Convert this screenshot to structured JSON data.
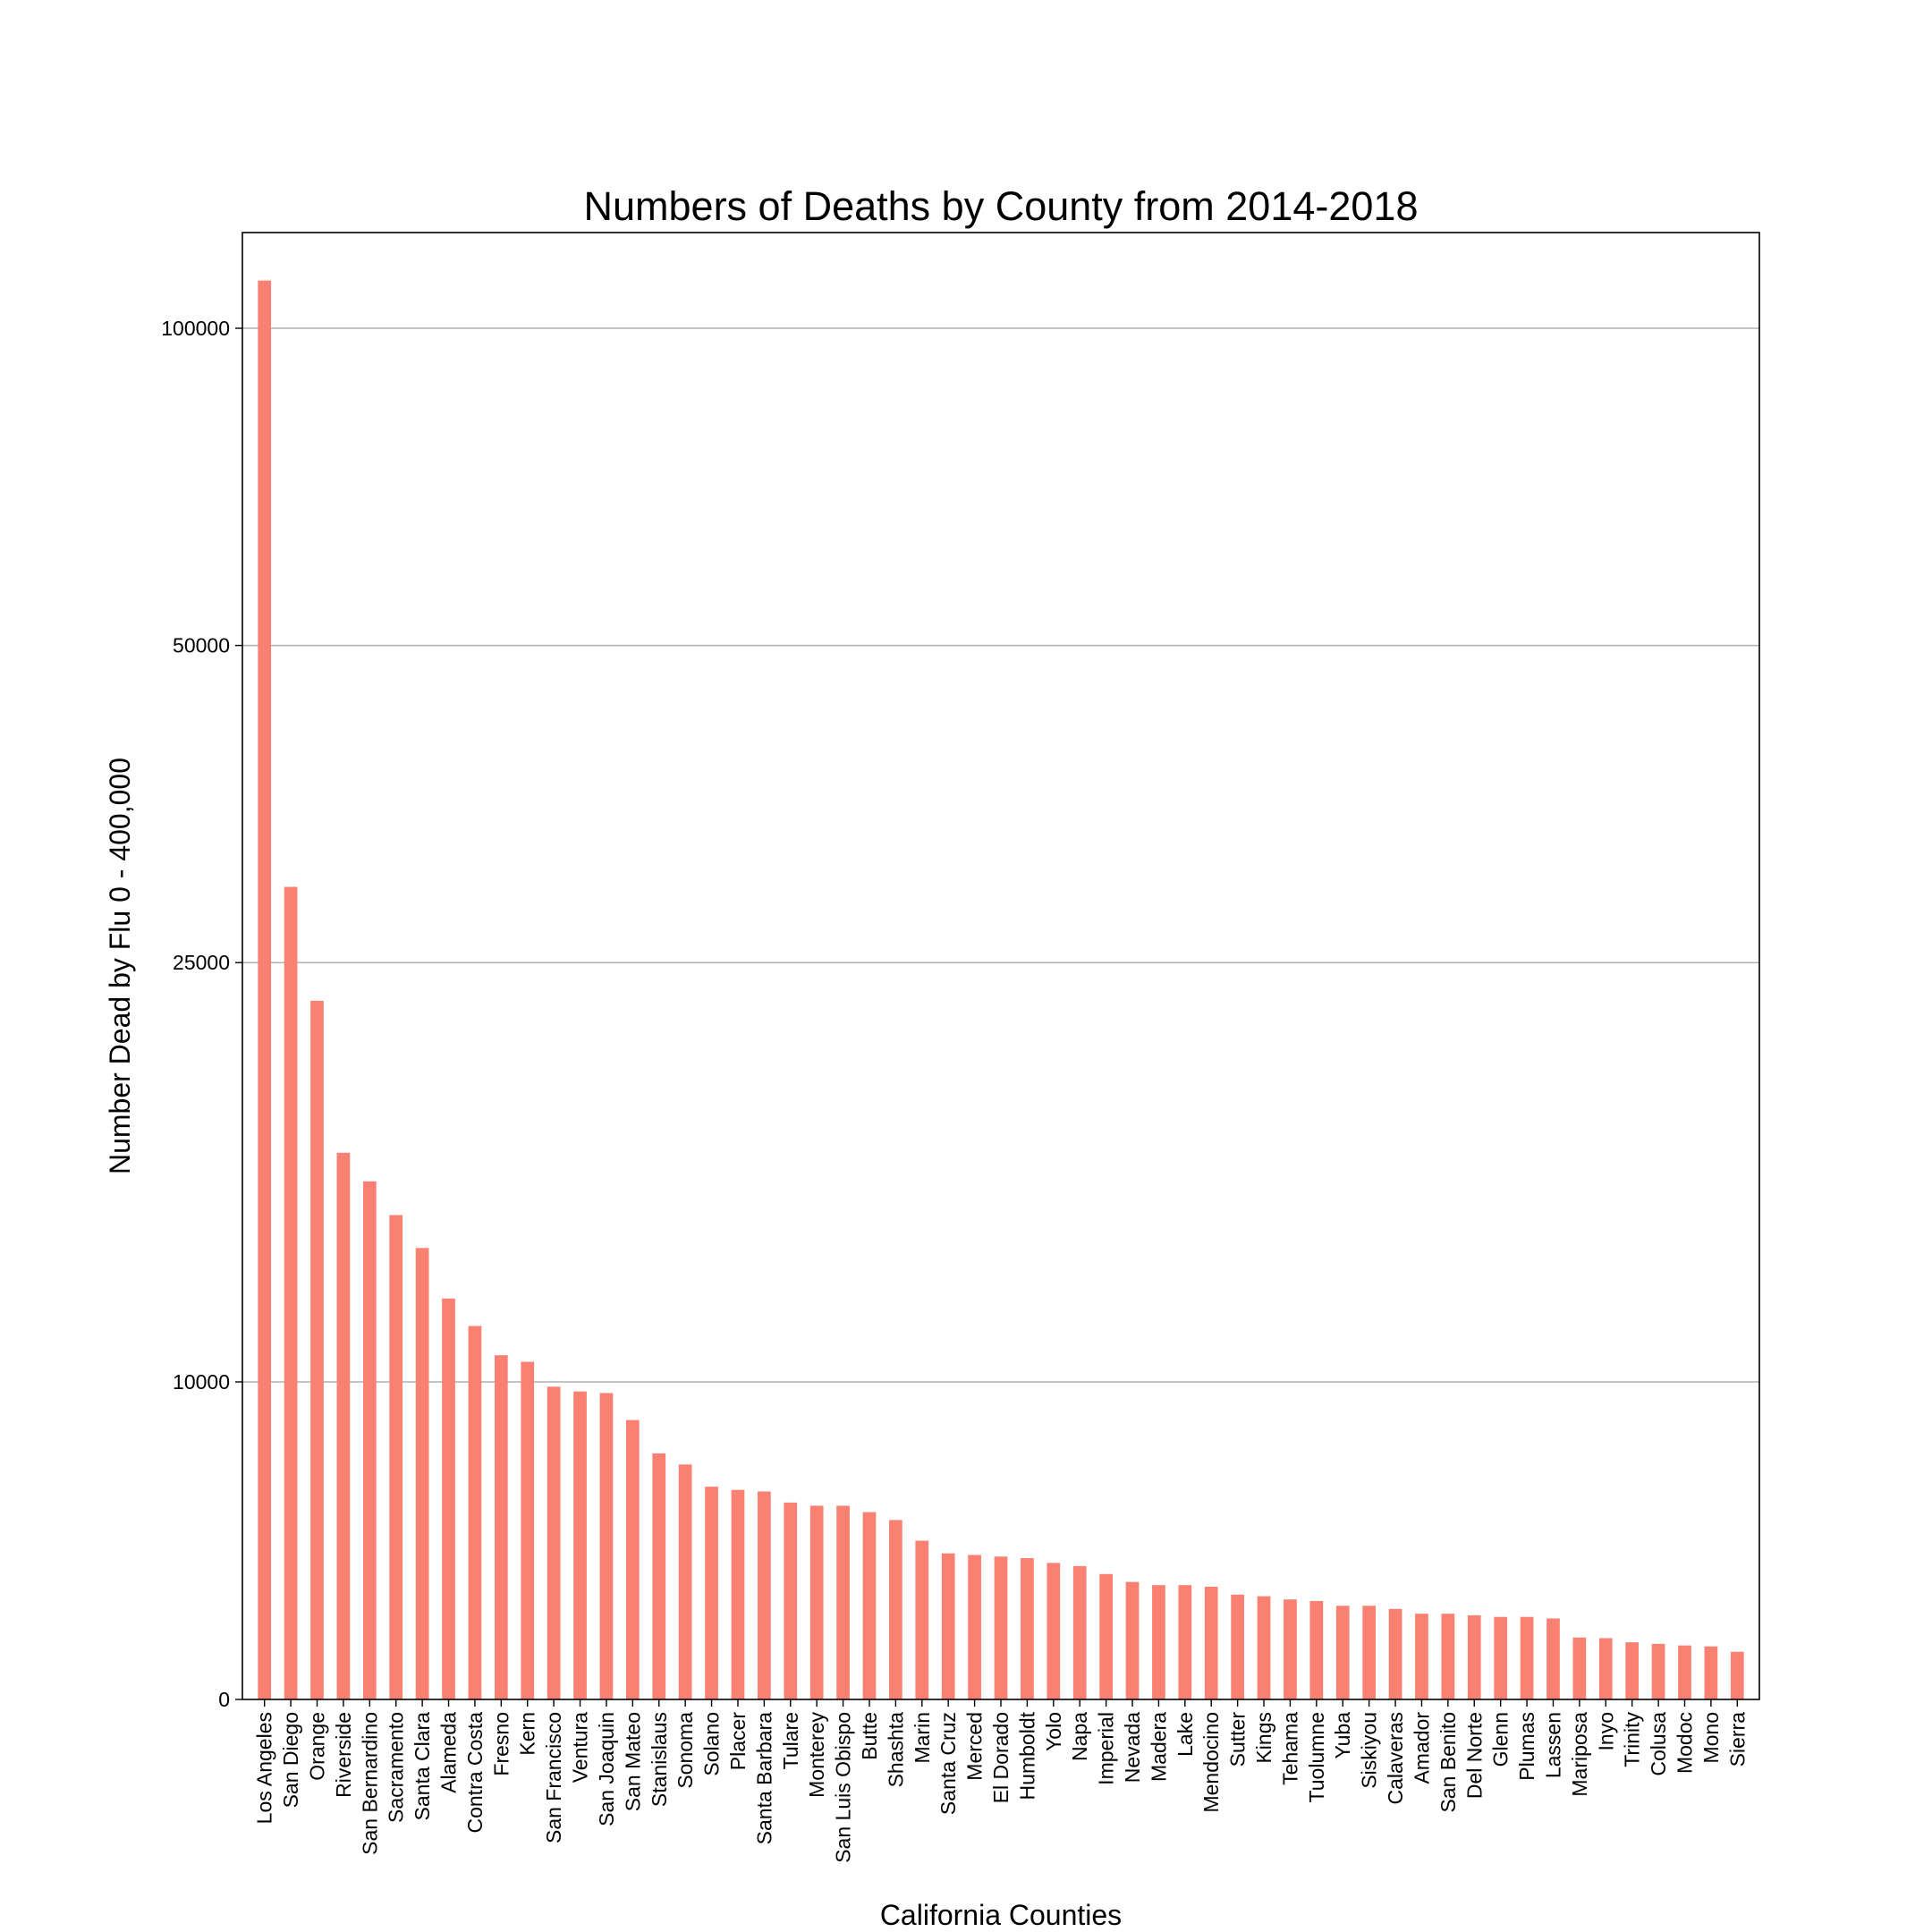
{
  "chart_data": {
    "type": "bar",
    "title": "Numbers of Deaths by County from 2014-2018",
    "xlabel": "California Counties",
    "ylabel": "Number Dead by Flu 0 - 400,000",
    "y_scale": "symlog",
    "y_ticks": [
      0,
      10000,
      25000,
      50000,
      100000
    ],
    "ylim": [
      0,
      122000
    ],
    "grid": "horizontal",
    "bar_color": "#fa8072",
    "categories": [
      "Los Angeles",
      "San Diego",
      "Orange",
      "Riverside",
      "San Bernardino",
      "Sacramento",
      "Santa Clara",
      "Alameda",
      "Contra Costa",
      "Fresno",
      "Kern",
      "San Francisco",
      "Ventura",
      "San Joaquin",
      "San Mateo",
      "Stanislaus",
      "Sonoma",
      "Solano",
      "Placer",
      "Santa Barbara",
      "Tulare",
      "Monterey",
      "San Luis Obispo",
      "Butte",
      "Shashta",
      "Marin",
      "Santa Cruz",
      "Merced",
      "El Dorado",
      "Humboldt",
      "Yolo",
      "Napa",
      "Imperial",
      "Nevada",
      "Madera",
      "Lake",
      "Mendocino",
      "Sutter",
      "Kings",
      "Tehama",
      "Tuolumne",
      "Yuba",
      "Siskiyou",
      "Calaveras",
      "Amador",
      "San Benito",
      "Del Norte",
      "Glenn",
      "Plumas",
      "Lassen",
      "Mariposa",
      "Inyo",
      "Trinity",
      "Colusa",
      "Modoc",
      "Mono",
      "Sierra"
    ],
    "values": [
      111000,
      29500,
      23000,
      16500,
      15500,
      14400,
      13400,
      12000,
      11300,
      10600,
      10450,
      9850,
      9700,
      9650,
      8800,
      7750,
      7400,
      6700,
      6600,
      6550,
      6200,
      6100,
      6100,
      5900,
      5650,
      5000,
      4600,
      4550,
      4500,
      4450,
      4300,
      4200,
      3950,
      3700,
      3600,
      3600,
      3550,
      3300,
      3250,
      3150,
      3100,
      2950,
      2950,
      2850,
      2700,
      2700,
      2650,
      2600,
      2600,
      2550,
      1950,
      1930,
      1800,
      1750,
      1700,
      1670,
      1500
    ]
  }
}
